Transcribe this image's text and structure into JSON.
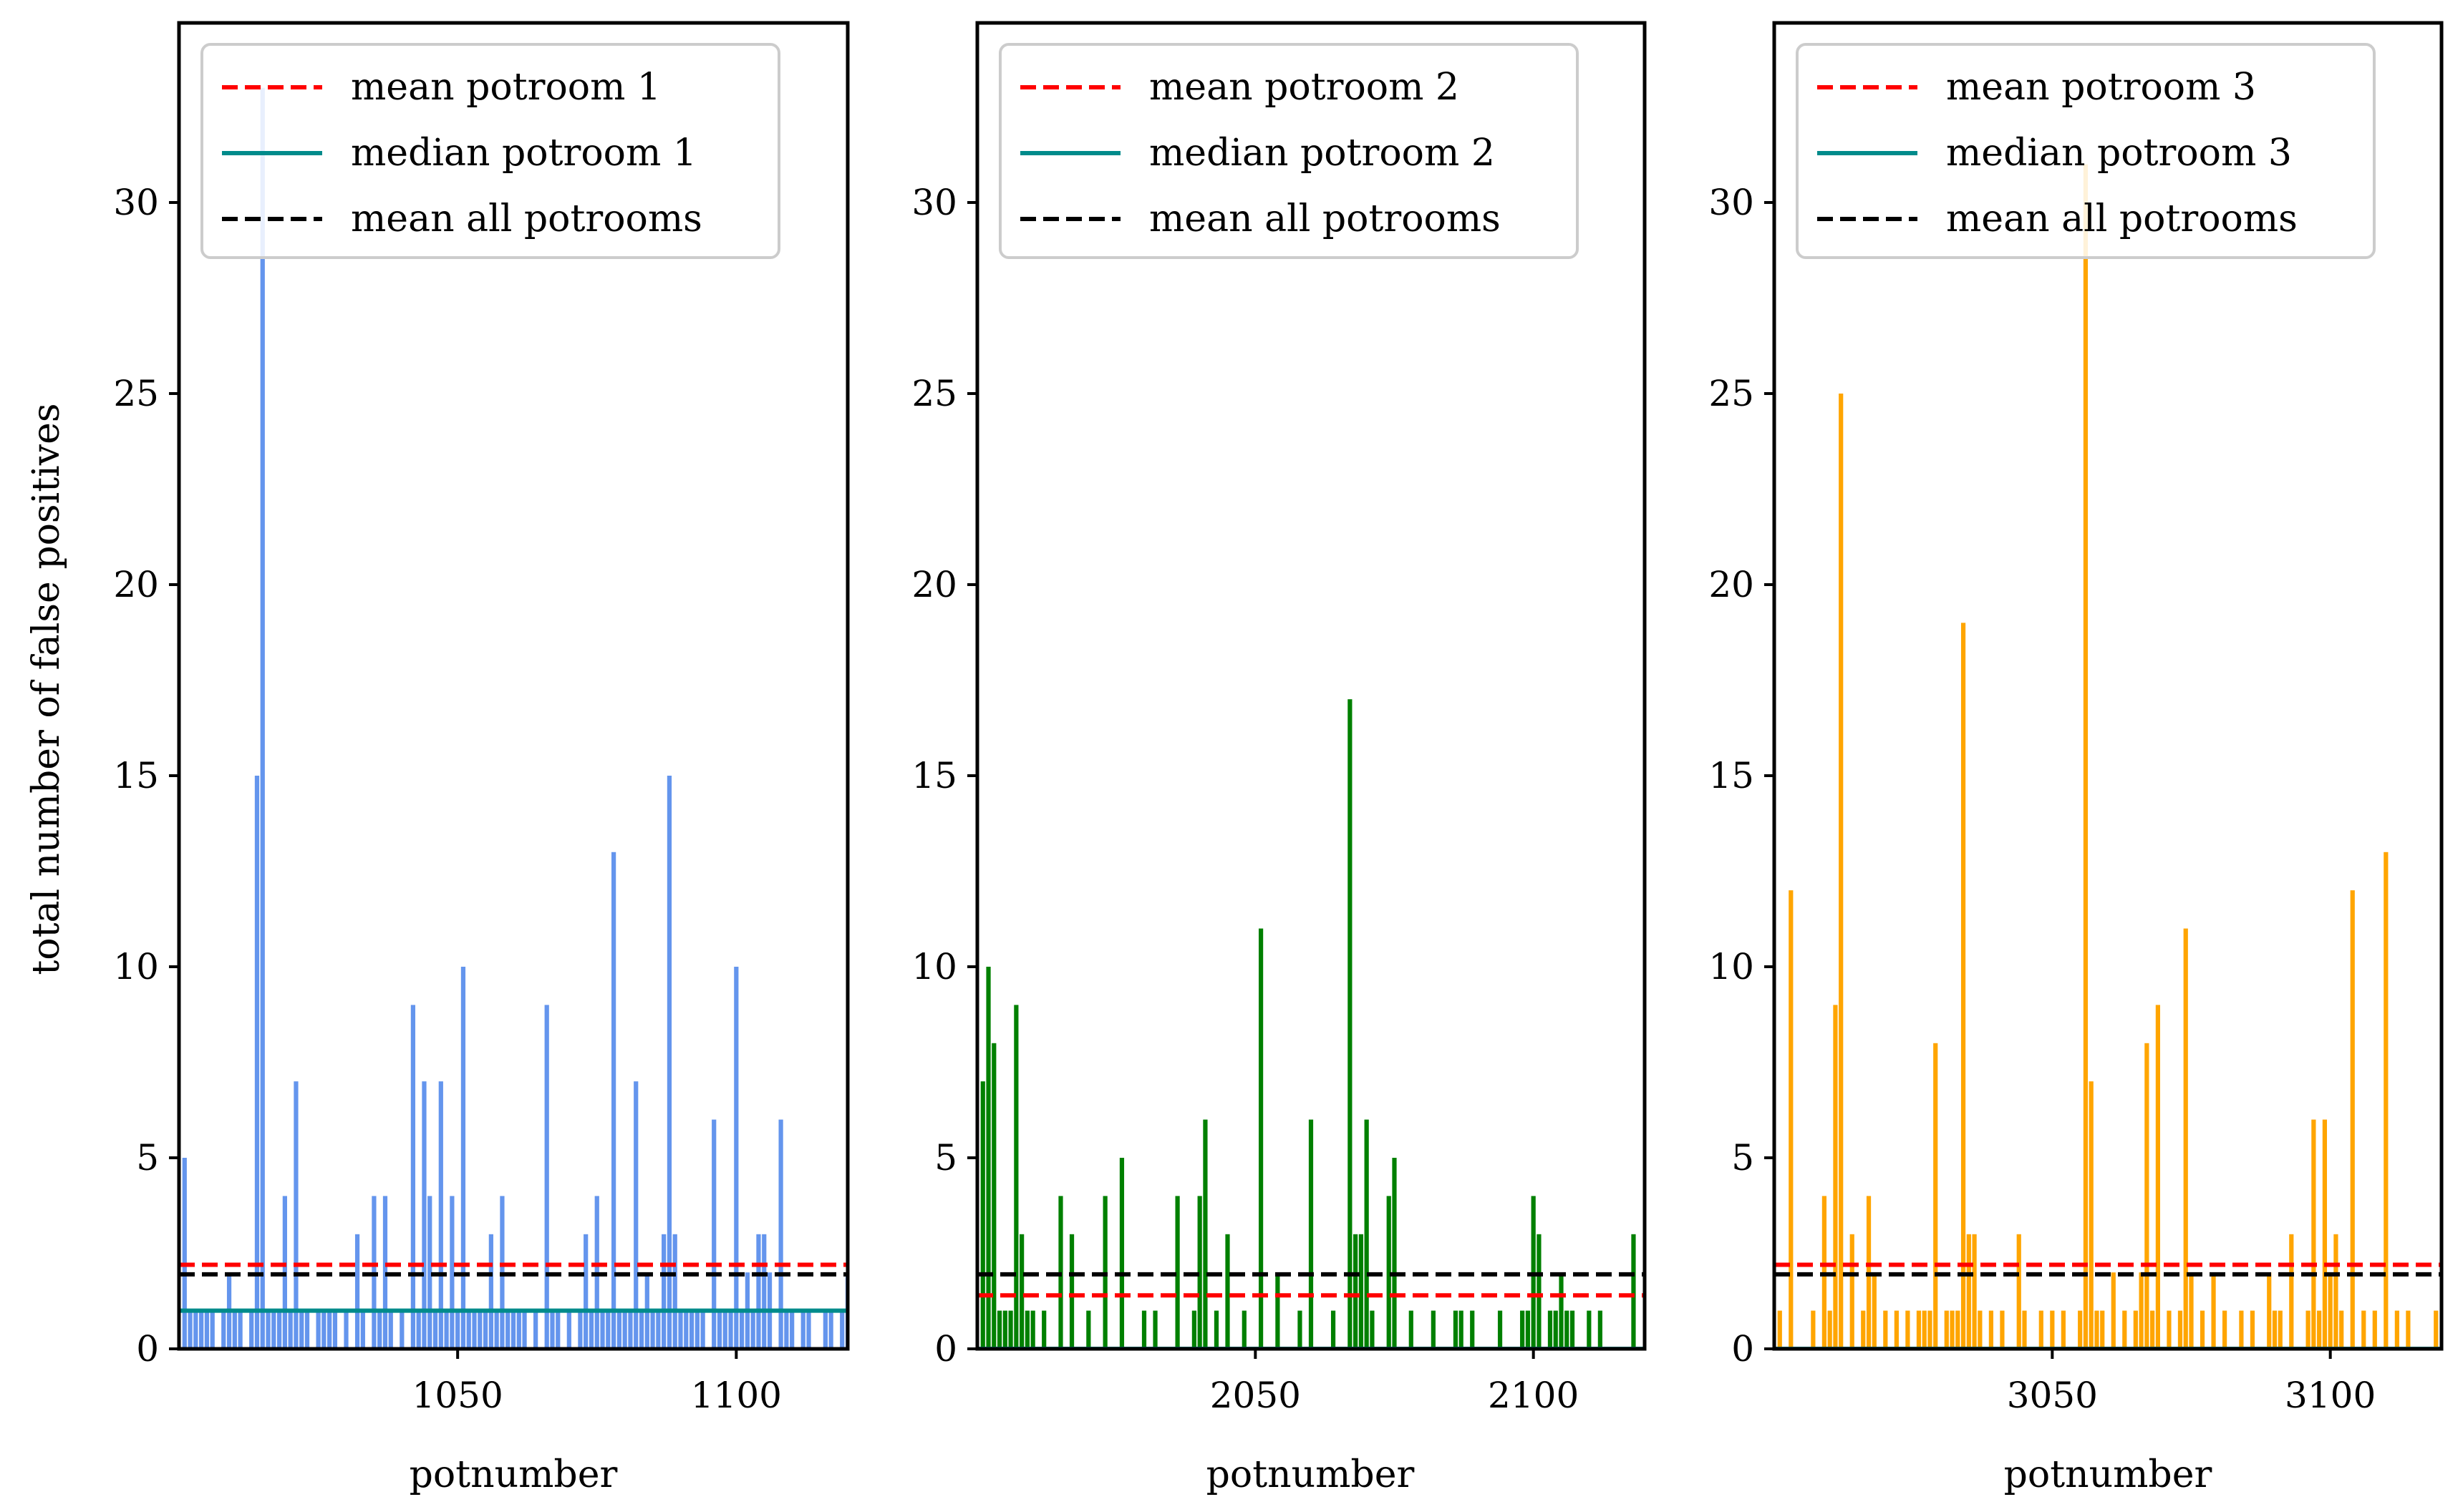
{
  "chart_data": [
    {
      "type": "bar",
      "panel": "potroom-1",
      "title": "",
      "xlabel": "potnumber",
      "ylabel": "total number of false positives",
      "xlim": [
        1000,
        1120
      ],
      "ylim": [
        0,
        34.7
      ],
      "xticks": [
        1050,
        1100
      ],
      "yticks": [
        0,
        5,
        10,
        15,
        20,
        25,
        30
      ],
      "bar_color": "#6495ed",
      "x": [
        1001,
        1002,
        1003,
        1004,
        1005,
        1006,
        1008,
        1009,
        1010,
        1011,
        1013,
        1014,
        1015,
        1016,
        1017,
        1018,
        1019,
        1020,
        1021,
        1022,
        1023,
        1025,
        1026,
        1027,
        1028,
        1030,
        1032,
        1033,
        1035,
        1036,
        1037,
        1038,
        1040,
        1042,
        1043,
        1044,
        1045,
        1046,
        1047,
        1048,
        1049,
        1050,
        1051,
        1052,
        1053,
        1054,
        1055,
        1056,
        1057,
        1058,
        1059,
        1060,
        1061,
        1062,
        1064,
        1066,
        1067,
        1068,
        1070,
        1072,
        1073,
        1074,
        1075,
        1076,
        1077,
        1078,
        1079,
        1080,
        1081,
        1082,
        1083,
        1084,
        1085,
        1086,
        1087,
        1088,
        1089,
        1090,
        1091,
        1092,
        1093,
        1094,
        1096,
        1097,
        1098,
        1099,
        1100,
        1101,
        1102,
        1103,
        1104,
        1105,
        1106,
        1108,
        1109,
        1110,
        1112,
        1113,
        1116,
        1117,
        1119,
        1120
      ],
      "values": [
        5,
        1,
        1,
        1,
        1,
        1,
        1,
        2,
        1,
        1,
        1,
        15,
        33,
        1,
        1,
        1,
        4,
        1,
        7,
        1,
        1,
        1,
        1,
        1,
        1,
        1,
        3,
        1,
        4,
        1,
        4,
        1,
        1,
        9,
        1,
        7,
        4,
        1,
        7,
        1,
        4,
        1,
        10,
        1,
        1,
        1,
        1,
        3,
        1,
        4,
        1,
        1,
        1,
        1,
        1,
        9,
        1,
        1,
        1,
        1,
        3,
        1,
        4,
        1,
        1,
        13,
        1,
        1,
        1,
        7,
        1,
        2,
        1,
        1,
        3,
        15,
        3,
        1,
        1,
        1,
        1,
        1,
        6,
        1,
        1,
        1,
        10,
        1,
        2,
        1,
        3,
        3,
        2,
        6,
        1,
        1,
        1,
        1,
        1,
        1,
        1,
        2
      ],
      "lines": [
        {
          "label": "mean potroom 1",
          "value": 2.2,
          "color": "#ff0000",
          "style": "dashed"
        },
        {
          "label": "median potroom 1",
          "value": 1.0,
          "color": "#008b8b",
          "style": "solid"
        },
        {
          "label": "mean all potrooms",
          "value": 1.95,
          "color": "#000000",
          "style": "dashed"
        }
      ],
      "legend": [
        "mean potroom 1",
        "median potroom 1",
        "mean all potrooms"
      ],
      "legend_position": "top-right"
    },
    {
      "type": "bar",
      "panel": "potroom-2",
      "title": "",
      "xlabel": "potnumber",
      "ylabel": "",
      "xlim": [
        2000,
        2120
      ],
      "ylim": [
        0,
        34.7
      ],
      "xticks": [
        2050,
        2100
      ],
      "yticks": [
        0,
        5,
        10,
        15,
        20,
        25,
        30
      ],
      "bar_color": "#008000",
      "x": [
        2001,
        2002,
        2003,
        2004,
        2005,
        2006,
        2007,
        2008,
        2009,
        2010,
        2012,
        2015,
        2017,
        2020,
        2023,
        2026,
        2030,
        2032,
        2036,
        2039,
        2040,
        2041,
        2043,
        2045,
        2048,
        2051,
        2054,
        2058,
        2060,
        2064,
        2067,
        2068,
        2069,
        2070,
        2071,
        2074,
        2075,
        2078,
        2082,
        2086,
        2087,
        2089,
        2094,
        2098,
        2099,
        2100,
        2101,
        2103,
        2104,
        2105,
        2106,
        2107,
        2110,
        2112,
        2118
      ],
      "values": [
        7,
        10,
        8,
        1,
        1,
        1,
        9,
        3,
        1,
        1,
        1,
        4,
        3,
        1,
        4,
        5,
        1,
        1,
        4,
        1,
        4,
        6,
        1,
        3,
        1,
        11,
        2,
        1,
        6,
        1,
        17,
        3,
        3,
        6,
        1,
        4,
        5,
        1,
        1,
        1,
        1,
        1,
        1,
        1,
        1,
        4,
        3,
        1,
        1,
        2,
        1,
        1,
        1,
        1,
        3
      ],
      "lines": [
        {
          "label": "mean potroom 2",
          "value": 1.4,
          "color": "#ff0000",
          "style": "dashed"
        },
        {
          "label": "median potroom 2",
          "value": 0,
          "color": "#008b8b",
          "style": "solid"
        },
        {
          "label": "mean all potrooms",
          "value": 1.95,
          "color": "#000000",
          "style": "dashed"
        }
      ],
      "legend": [
        "mean potroom 2",
        "median potroom 2",
        "mean all potrooms"
      ],
      "legend_position": "top-right"
    },
    {
      "type": "bar",
      "panel": "potroom-3",
      "title": "",
      "xlabel": "potnumber",
      "ylabel": "",
      "xlim": [
        3000,
        3120
      ],
      "ylim": [
        0,
        34.7
      ],
      "xticks": [
        3050,
        3100
      ],
      "yticks": [
        0,
        5,
        10,
        15,
        20,
        25,
        30
      ],
      "bar_color": "#ffa500",
      "x": [
        3001,
        3003,
        3007,
        3009,
        3010,
        3011,
        3012,
        3014,
        3016,
        3017,
        3018,
        3020,
        3022,
        3024,
        3026,
        3027,
        3028,
        3029,
        3031,
        3032,
        3033,
        3034,
        3035,
        3036,
        3037,
        3039,
        3041,
        3044,
        3045,
        3048,
        3050,
        3052,
        3055,
        3056,
        3057,
        3058,
        3059,
        3061,
        3063,
        3065,
        3066,
        3067,
        3068,
        3069,
        3071,
        3073,
        3074,
        3075,
        3077,
        3079,
        3081,
        3084,
        3086,
        3089,
        3090,
        3091,
        3093,
        3096,
        3097,
        3098,
        3099,
        3100,
        3101,
        3102,
        3104,
        3106,
        3108,
        3110,
        3112,
        3114,
        3119
      ],
      "values": [
        1,
        12,
        1,
        4,
        1,
        9,
        25,
        3,
        1,
        4,
        2,
        1,
        1,
        1,
        1,
        1,
        1,
        8,
        1,
        1,
        1,
        19,
        3,
        3,
        1,
        1,
        1,
        3,
        1,
        1,
        1,
        1,
        1,
        31,
        7,
        1,
        1,
        2,
        1,
        1,
        2,
        8,
        1,
        9,
        1,
        1,
        11,
        2,
        1,
        2,
        1,
        1,
        1,
        2,
        1,
        1,
        3,
        1,
        6,
        1,
        6,
        2,
        3,
        1,
        12,
        1,
        1,
        13,
        1,
        1,
        1
      ],
      "lines": [
        {
          "label": "mean potroom 3",
          "value": 2.2,
          "color": "#ff0000",
          "style": "dashed"
        },
        {
          "label": "median potroom 3",
          "value": 0,
          "color": "#008b8b",
          "style": "solid"
        },
        {
          "label": "mean all potrooms",
          "value": 1.95,
          "color": "#000000",
          "style": "dashed"
        }
      ],
      "legend": [
        "mean potroom 3",
        "median potroom 3",
        "mean all potrooms"
      ],
      "legend_position": "top-right"
    }
  ]
}
